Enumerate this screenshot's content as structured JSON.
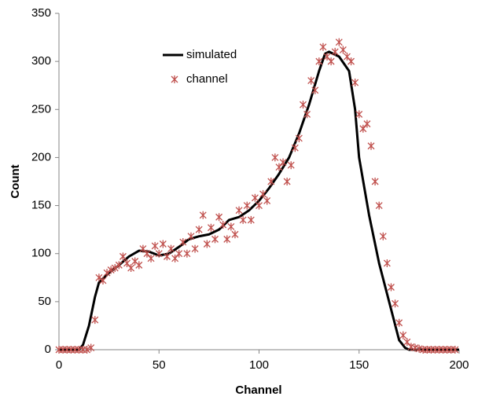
{
  "chart_data": {
    "type": "scatter",
    "xlabel": "Channel",
    "ylabel": "Count",
    "xlim": [
      0,
      200
    ],
    "xticks": [
      0,
      50,
      100,
      150,
      200
    ],
    "ylim": [
      0,
      350
    ],
    "yticks": [
      0,
      50,
      100,
      150,
      200,
      250,
      300,
      350
    ],
    "grid": false,
    "legend": "upper left",
    "series": [
      {
        "name": "simulated",
        "type": "line",
        "color": "#000000",
        "x": [
          0,
          5,
          10,
          12,
          15,
          18,
          20,
          25,
          30,
          35,
          40,
          45,
          50,
          55,
          60,
          65,
          70,
          75,
          80,
          85,
          90,
          95,
          100,
          105,
          110,
          115,
          120,
          125,
          130,
          133,
          135,
          140,
          145,
          148,
          150,
          155,
          160,
          165,
          170,
          173,
          175,
          180,
          190,
          200
        ],
        "values": [
          0,
          0,
          0,
          5,
          25,
          55,
          70,
          80,
          88,
          97,
          103,
          102,
          98,
          100,
          107,
          115,
          118,
          120,
          125,
          135,
          138,
          145,
          155,
          168,
          183,
          200,
          225,
          255,
          290,
          308,
          310,
          305,
          290,
          250,
          200,
          140,
          90,
          50,
          10,
          2,
          0,
          0,
          0,
          0
        ]
      },
      {
        "name": "channel",
        "type": "scatter",
        "color": "#c0504d",
        "x": [
          0,
          2,
          4,
          6,
          8,
          10,
          12,
          14,
          16,
          18,
          20,
          22,
          24,
          26,
          28,
          30,
          32,
          34,
          36,
          38,
          40,
          42,
          44,
          46,
          48,
          50,
          52,
          54,
          56,
          58,
          60,
          62,
          64,
          66,
          68,
          70,
          72,
          74,
          76,
          78,
          80,
          82,
          84,
          86,
          88,
          90,
          92,
          94,
          96,
          98,
          100,
          102,
          104,
          106,
          108,
          110,
          112,
          114,
          116,
          118,
          120,
          122,
          124,
          126,
          128,
          130,
          132,
          134,
          136,
          138,
          140,
          142,
          144,
          146,
          148,
          150,
          152,
          154,
          156,
          158,
          160,
          162,
          164,
          166,
          168,
          170,
          172,
          174,
          176,
          178,
          180,
          182,
          184,
          186,
          188,
          190,
          192,
          194,
          196,
          198
        ],
        "values": [
          0,
          0,
          0,
          0,
          0,
          0,
          0,
          0,
          2,
          31,
          75,
          72,
          80,
          83,
          85,
          88,
          97,
          90,
          85,
          92,
          88,
          105,
          100,
          95,
          108,
          100,
          110,
          97,
          105,
          95,
          100,
          112,
          100,
          118,
          105,
          125,
          140,
          110,
          127,
          115,
          138,
          130,
          115,
          128,
          120,
          145,
          135,
          150,
          135,
          158,
          150,
          162,
          155,
          175,
          200,
          190,
          195,
          175,
          192,
          210,
          220,
          255,
          245,
          280,
          270,
          300,
          315,
          305,
          300,
          310,
          320,
          312,
          305,
          300,
          278,
          245,
          230,
          235,
          212,
          175,
          150,
          118,
          90,
          65,
          48,
          28,
          15,
          8,
          3,
          2,
          1,
          0,
          0,
          0,
          0,
          0,
          0,
          0,
          0,
          0
        ]
      }
    ]
  }
}
